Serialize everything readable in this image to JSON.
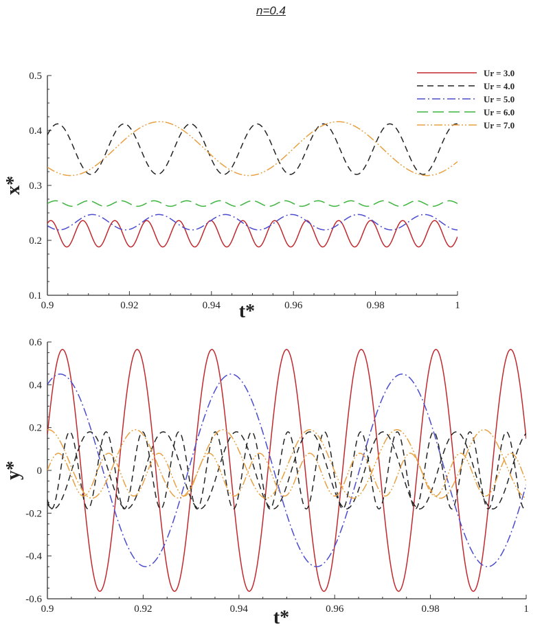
{
  "title": "n=0.4",
  "chart_data": [
    {
      "type": "line",
      "xlabel": "t*",
      "ylabel": "x*",
      "xlim": [
        0.9,
        1.0
      ],
      "ylim": [
        0.1,
        0.5
      ],
      "xticks": [
        "0.9",
        "0.92",
        "0.94",
        "0.96",
        "0.98",
        "1"
      ],
      "yticks": [
        "0.1",
        "0.2",
        "0.3",
        "0.4",
        "0.5"
      ],
      "legend_position": "top-right",
      "series": [
        {
          "name": "Ur = 3.0",
          "color": "#c0282d",
          "dash": "solid",
          "mean": 0.212,
          "amp": 0.024,
          "period": 0.0078,
          "phase": 0.9
        },
        {
          "name": "Ur = 4.0",
          "color": "#222222",
          "dash": "dash",
          "mean": 0.366,
          "amp": 0.046,
          "period": 0.0162,
          "phase": 0.6
        },
        {
          "name": "Ur = 5.0",
          "color": "#4a4ad0",
          "dash": "dashdot",
          "mean": 0.233,
          "amp": 0.014,
          "period": 0.0162,
          "phase": 3.6
        },
        {
          "name": "Ur = 6.0",
          "color": "#3cb43c",
          "dash": "longdash",
          "mean": 0.267,
          "amp": 0.005,
          "period": 0.008,
          "phase": 0.0
        },
        {
          "name": "Ur = 7.0",
          "color": "#e8a040",
          "dash": "dashdotdot",
          "mean": 0.367,
          "amp": 0.049,
          "period": 0.0435,
          "phase": 3.9
        }
      ]
    },
    {
      "type": "line",
      "xlabel": "t*",
      "ylabel": "y*",
      "xlim": [
        0.9,
        1.0
      ],
      "ylim": [
        -0.6,
        0.6
      ],
      "xticks": [
        "0.9",
        "0.92",
        "0.94",
        "0.96",
        "0.98",
        "1"
      ],
      "yticks": [
        "-0.6",
        "-0.4",
        "-0.2",
        "0",
        "0.2",
        "0.4",
        "0.6"
      ],
      "series": [
        {
          "name": "Ur = 3.0",
          "color": "#c0282d",
          "dash": "solid",
          "mean": 0.0,
          "amp": 0.565,
          "period": 0.0156,
          "phase": 0.3
        },
        {
          "name": "Ur = 5.0",
          "color": "#4a4ad0",
          "dash": "dashdot",
          "mean": 0.0,
          "amp": 0.45,
          "period": 0.0357,
          "phase": 1.1
        },
        {
          "name": "Ur = 4.0 (a)",
          "color": "#222222",
          "dash": "dash",
          "mean": 0.0,
          "amp": 0.18,
          "period": 0.0153,
          "phase": 4.2
        },
        {
          "name": "Ur = 4.0 (b)",
          "color": "#222222",
          "dash": "dash",
          "mean": 0.0,
          "amp": 0.18,
          "period": 0.0076,
          "phase": 4.0
        },
        {
          "name": "Ur = 7.0 (a)",
          "color": "#e8a040",
          "dash": "dashdotdot",
          "mean": 0.03,
          "amp": 0.16,
          "period": 0.0182,
          "phase": 1.5
        },
        {
          "name": "Ur = 7.0 (b)",
          "color": "#e8a040",
          "dash": "dashdotdot",
          "mean": -0.02,
          "amp": 0.1,
          "period": 0.0105,
          "phase": 0.2
        }
      ]
    }
  ]
}
